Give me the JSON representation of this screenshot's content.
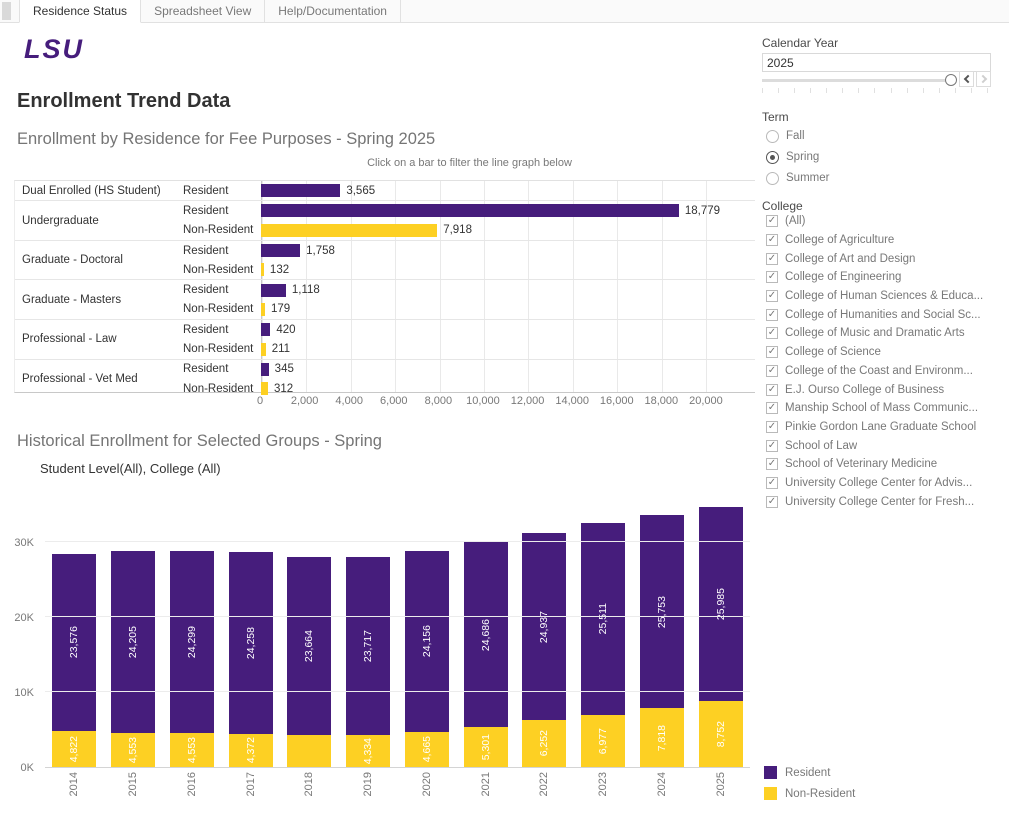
{
  "tabs": [
    {
      "label": "Residence Status",
      "active": true
    },
    {
      "label": "Spreadsheet View",
      "active": false
    },
    {
      "label": "Help/Documentation",
      "active": false
    }
  ],
  "logo_text": "LSU",
  "page_title": "Enrollment Trend Data",
  "colors": {
    "resident": "#461D7C",
    "non_resident": "#FDD023"
  },
  "chart_data": [
    {
      "type": "bar",
      "orientation": "horizontal",
      "title": "Enrollment by Residence for Fee Purposes - Spring 2025",
      "subtitle": "Click on a bar to filter the line graph below",
      "xlim": [
        0,
        22200
      ],
      "x_ticks": [
        {
          "value": 0,
          "label": "0"
        },
        {
          "value": 2000,
          "label": "2,000"
        },
        {
          "value": 4000,
          "label": "4,000"
        },
        {
          "value": 6000,
          "label": "6,000"
        },
        {
          "value": 8000,
          "label": "8,000"
        },
        {
          "value": 10000,
          "label": "10,000"
        },
        {
          "value": 12000,
          "label": "12,000"
        },
        {
          "value": 14000,
          "label": "14,000"
        },
        {
          "value": 16000,
          "label": "16,000"
        },
        {
          "value": 18000,
          "label": "18,000"
        },
        {
          "value": 20000,
          "label": "20,000"
        }
      ],
      "groups": [
        {
          "category": "Dual Enrolled (HS Student)",
          "rows": [
            {
              "residence": "Resident",
              "value": 3565,
              "label": "3,565"
            }
          ]
        },
        {
          "category": "Undergraduate",
          "rows": [
            {
              "residence": "Resident",
              "value": 18779,
              "label": "18,779"
            },
            {
              "residence": "Non-Resident",
              "value": 7918,
              "label": "7,918"
            }
          ]
        },
        {
          "category": "Graduate - Doctoral",
          "rows": [
            {
              "residence": "Resident",
              "value": 1758,
              "label": "1,758"
            },
            {
              "residence": "Non-Resident",
              "value": 132,
              "label": "132"
            }
          ]
        },
        {
          "category": "Graduate - Masters",
          "rows": [
            {
              "residence": "Resident",
              "value": 1118,
              "label": "1,118"
            },
            {
              "residence": "Non-Resident",
              "value": 179,
              "label": "179"
            }
          ]
        },
        {
          "category": "Professional - Law",
          "rows": [
            {
              "residence": "Resident",
              "value": 420,
              "label": "420"
            },
            {
              "residence": "Non-Resident",
              "value": 211,
              "label": "211"
            }
          ]
        },
        {
          "category": "Professional - Vet Med",
          "rows": [
            {
              "residence": "Resident",
              "value": 345,
              "label": "345"
            },
            {
              "residence": "Non-Resident",
              "value": 312,
              "label": "312"
            }
          ]
        }
      ]
    },
    {
      "type": "bar",
      "stacked": true,
      "title": "Historical Enrollment for Selected Groups - Spring",
      "subtitle": "Student Level(All), College (All)",
      "categories": [
        "2014",
        "2015",
        "2016",
        "2017",
        "2018",
        "2019",
        "2020",
        "2021",
        "2022",
        "2023",
        "2024",
        "2025"
      ],
      "ylim": [
        0,
        37333
      ],
      "y_ticks": [
        {
          "value": 0,
          "label": "0K"
        },
        {
          "value": 10000,
          "label": "10K"
        },
        {
          "value": 20000,
          "label": "20K"
        },
        {
          "value": 30000,
          "label": "30K"
        }
      ],
      "series": [
        {
          "name": "Resident",
          "color": "#461D7C",
          "values": [
            23576,
            24205,
            24299,
            24258,
            23664,
            23717,
            24156,
            24686,
            24937,
            25511,
            25753,
            25985
          ],
          "labels": [
            "23,576",
            "24,205",
            "24,299",
            "24,258",
            "23,664",
            "23,717",
            "24,156",
            "24,686",
            "24,937",
            "25,511",
            "25,753",
            "25,985"
          ]
        },
        {
          "name": "Non-Resident",
          "color": "#FDD023",
          "values": [
            4822,
            4553,
            4553,
            4372,
            4300,
            4334,
            4665,
            5301,
            6252,
            6977,
            7818,
            8752
          ],
          "labels": [
            "4,822",
            "4,553",
            "4,553",
            "4,372",
            "",
            "4,334",
            "4,665",
            "5,301",
            "6,252",
            "6,977",
            "7,818",
            "8,752"
          ]
        }
      ],
      "legend": [
        "Resident",
        "Non-Resident"
      ]
    }
  ],
  "sidebar": {
    "calendar_year": {
      "label": "Calendar Year",
      "value": "2025"
    },
    "term": {
      "label": "Term",
      "options": [
        {
          "label": "Fall",
          "selected": false
        },
        {
          "label": "Spring",
          "selected": true
        },
        {
          "label": "Summer",
          "selected": false
        }
      ]
    },
    "college": {
      "label": "College",
      "options": [
        {
          "label": "(All)",
          "checked": true
        },
        {
          "label": "College of Agriculture",
          "checked": true
        },
        {
          "label": "College of Art and Design",
          "checked": true
        },
        {
          "label": "College of Engineering",
          "checked": true
        },
        {
          "label": "College of Human Sciences & Educa...",
          "checked": true
        },
        {
          "label": "College of Humanities and Social Sc...",
          "checked": true
        },
        {
          "label": "College of Music and Dramatic Arts",
          "checked": true
        },
        {
          "label": "College of Science",
          "checked": true
        },
        {
          "label": "College of the Coast and Environm...",
          "checked": true
        },
        {
          "label": "E.J. Ourso College of Business",
          "checked": true
        },
        {
          "label": "Manship School of Mass Communic...",
          "checked": true
        },
        {
          "label": "Pinkie Gordon Lane Graduate School",
          "checked": true
        },
        {
          "label": "School of Law",
          "checked": true
        },
        {
          "label": "School of Veterinary Medicine",
          "checked": true
        },
        {
          "label": "University College Center for Advis...",
          "checked": true
        },
        {
          "label": "University College Center for Fresh...",
          "checked": true
        }
      ]
    }
  }
}
